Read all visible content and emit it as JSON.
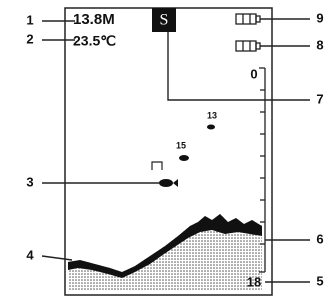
{
  "callouts": [
    "1",
    "2",
    "3",
    "4",
    "5",
    "6",
    "7",
    "8",
    "9"
  ],
  "screen": {
    "depth": "13.8M",
    "temperature": "23.5℃",
    "mode": "S",
    "scale_top": "0",
    "scale_bottom": "18",
    "fish_labels": [
      "13",
      "15"
    ]
  }
}
